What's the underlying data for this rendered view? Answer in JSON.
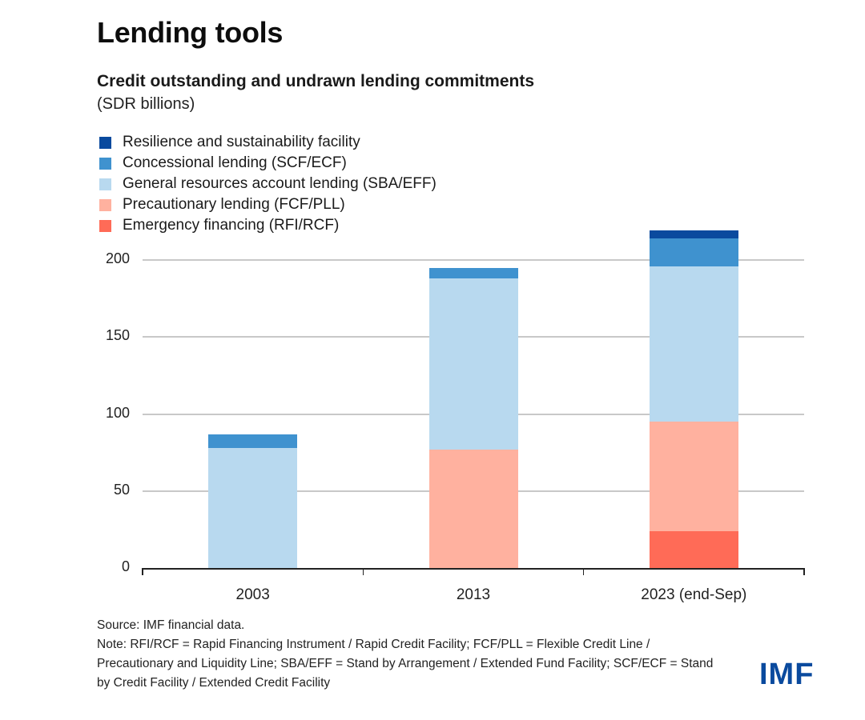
{
  "header": {
    "title": "Lending tools",
    "subtitle": "Credit outstanding and undrawn lending commitments",
    "units": "(SDR billions)"
  },
  "legend": [
    {
      "label": "Resilience and sustainability facility",
      "color": "#0a4a9e"
    },
    {
      "label": "Concessional lending (SCF/ECF)",
      "color": "#3f92cf"
    },
    {
      "label": "General resources account lending (SBA/EFF)",
      "color": "#b8d9ef"
    },
    {
      "label": "Precautionary lending (FCF/PLL)",
      "color": "#ffb19f"
    },
    {
      "label": "Emergency financing (RFI/RCF)",
      "color": "#ff6b57"
    }
  ],
  "footer": {
    "source": "Source: IMF financial data.",
    "note": "Note: RFI/RCF = Rapid Financing Instrument / Rapid Credit Facility; FCF/PLL = Flexible Credit Line / Precautionary and Liquidity Line; SBA/EFF = Stand by Arrangement / Extended Fund Facility; SCF/ECF = Stand by Credit Facility / Extended Credit Facility",
    "logo": "IMF"
  },
  "chart_data": {
    "type": "bar",
    "stacked": true,
    "title": "Credit outstanding and undrawn lending commitments",
    "subtitle": "(SDR billions)",
    "xlabel": "",
    "ylabel": "SDR billions",
    "ylim": [
      0,
      220
    ],
    "yticks": [
      0,
      50,
      100,
      150,
      200
    ],
    "grid": true,
    "legend_position": "top-left",
    "categories": [
      "2003",
      "2013",
      "2023 (end-Sep)"
    ],
    "series": [
      {
        "name": "Emergency financing (RFI/RCF)",
        "color": "#ff6b57",
        "values": [
          0,
          0,
          24
        ]
      },
      {
        "name": "Precautionary lending (FCF/PLL)",
        "color": "#ffb19f",
        "values": [
          0,
          77,
          71
        ]
      },
      {
        "name": "General resources account lending (SBA/EFF)",
        "color": "#b8d9ef",
        "values": [
          78,
          111,
          101
        ]
      },
      {
        "name": "Concessional lending (SCF/ECF)",
        "color": "#3f92cf",
        "values": [
          9,
          7,
          18
        ]
      },
      {
        "name": "Resilience and sustainability facility",
        "color": "#0a4a9e",
        "values": [
          0,
          0,
          5
        ]
      }
    ]
  }
}
